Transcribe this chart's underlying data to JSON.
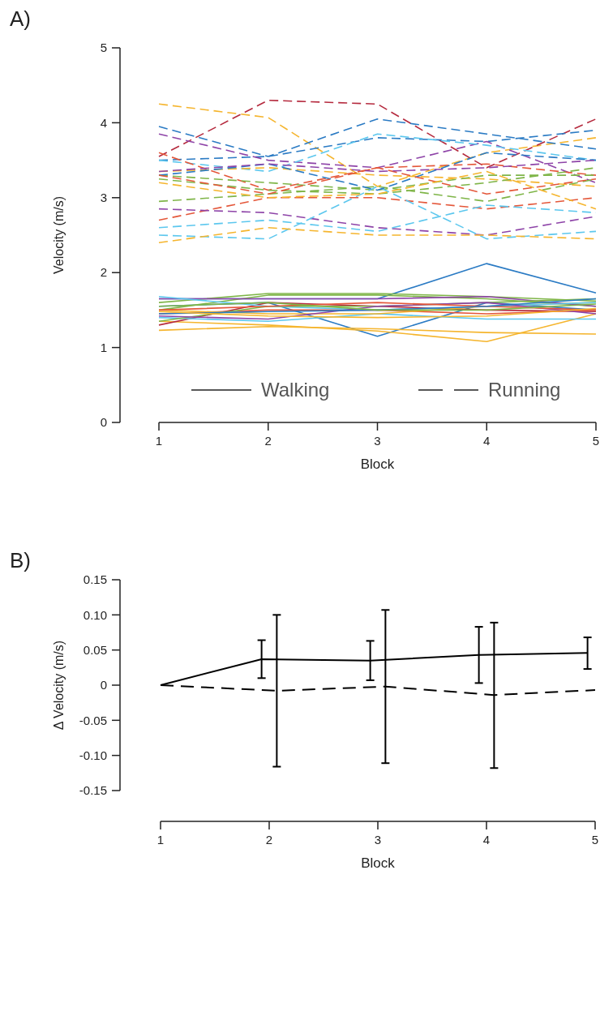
{
  "chart_data": [
    {
      "type": "line",
      "title": "A)",
      "xlabel": "Block",
      "ylabel": "Velocity (m/s)",
      "x": [
        1,
        2,
        3,
        4,
        5
      ],
      "xlim": [
        1,
        5
      ],
      "xticks": [
        1,
        2,
        3,
        4,
        5
      ],
      "ylim": [
        0,
        5
      ],
      "yticks": [
        0,
        1,
        2,
        3,
        4,
        5
      ],
      "grid": false,
      "marker": "none",
      "annotations": [
        "Walking",
        "Running"
      ],
      "series": [
        {
          "color": "#2b7bc4",
          "line_style": "solid",
          "values": [
            1.65,
            1.65,
            1.65,
            2.12,
            1.73
          ]
        },
        {
          "color": "#2b7bc4",
          "line_style": "solid",
          "values": [
            1.55,
            1.6,
            1.15,
            1.6,
            1.5
          ]
        },
        {
          "color": "#7fb548",
          "line_style": "solid",
          "values": [
            1.6,
            1.72,
            1.72,
            1.68,
            1.62
          ]
        },
        {
          "color": "#7fb548",
          "line_style": "solid",
          "values": [
            1.5,
            1.7,
            1.7,
            1.65,
            1.55
          ]
        },
        {
          "color": "#f5b52e",
          "line_style": "solid",
          "values": [
            1.23,
            1.28,
            1.25,
            1.2,
            1.18
          ]
        },
        {
          "color": "#f5b52e",
          "line_style": "solid",
          "values": [
            1.35,
            1.3,
            1.22,
            1.08,
            1.45
          ]
        },
        {
          "color": "#8e44a8",
          "line_style": "solid",
          "values": [
            1.65,
            1.65,
            1.65,
            1.68,
            1.55
          ]
        },
        {
          "color": "#b52a3e",
          "line_style": "solid",
          "values": [
            1.3,
            1.6,
            1.55,
            1.5,
            1.48
          ]
        },
        {
          "color": "#5cc7ee",
          "line_style": "solid",
          "values": [
            1.4,
            1.35,
            1.45,
            1.38,
            1.38
          ]
        },
        {
          "color": "#e4573a",
          "line_style": "solid",
          "values": [
            1.45,
            1.5,
            1.5,
            1.45,
            1.5
          ]
        },
        {
          "color": "#f5b52e",
          "line_style": "solid",
          "values": [
            1.5,
            1.45,
            1.45,
            1.55,
            1.6
          ]
        },
        {
          "color": "#5cc7ee",
          "line_style": "solid",
          "values": [
            1.68,
            1.55,
            1.5,
            1.55,
            1.6
          ]
        },
        {
          "color": "#7fb548",
          "line_style": "solid",
          "values": [
            1.35,
            1.55,
            1.55,
            1.6,
            1.65
          ]
        },
        {
          "color": "#8e44a8",
          "line_style": "solid",
          "values": [
            1.42,
            1.38,
            1.55,
            1.6,
            1.45
          ]
        },
        {
          "color": "#e4573a",
          "line_style": "solid",
          "values": [
            1.5,
            1.55,
            1.6,
            1.55,
            1.5
          ]
        },
        {
          "color": "#2b7bc4",
          "line_style": "solid",
          "values": [
            1.45,
            1.48,
            1.5,
            1.55,
            1.65
          ]
        },
        {
          "color": "#7fb548",
          "line_style": "solid",
          "values": [
            1.55,
            1.6,
            1.5,
            1.5,
            1.58
          ]
        },
        {
          "color": "#f5b52e",
          "line_style": "solid",
          "values": [
            1.48,
            1.42,
            1.4,
            1.42,
            1.52
          ]
        },
        {
          "color": "#f5b52e",
          "line_style": "dashed",
          "values": [
            4.25,
            4.07,
            3.15,
            3.6,
            3.8
          ]
        },
        {
          "color": "#b52a3e",
          "line_style": "dashed",
          "values": [
            3.55,
            4.3,
            4.25,
            3.4,
            4.05
          ]
        },
        {
          "color": "#2b7bc4",
          "line_style": "dashed",
          "values": [
            3.95,
            3.55,
            4.05,
            3.85,
            3.65
          ]
        },
        {
          "color": "#2b7bc4",
          "line_style": "dashed",
          "values": [
            3.5,
            3.55,
            3.8,
            3.75,
            3.9
          ]
        },
        {
          "color": "#8e44a8",
          "line_style": "dashed",
          "values": [
            3.85,
            3.5,
            3.4,
            3.75,
            3.2
          ]
        },
        {
          "color": "#5cc7ee",
          "line_style": "dashed",
          "values": [
            3.5,
            3.35,
            3.85,
            3.7,
            3.5
          ]
        },
        {
          "color": "#e4573a",
          "line_style": "dashed",
          "values": [
            3.6,
            3.1,
            3.4,
            3.45,
            3.3
          ]
        },
        {
          "color": "#f5b52e",
          "line_style": "dashed",
          "values": [
            3.35,
            3.4,
            3.3,
            3.25,
            3.15
          ]
        },
        {
          "color": "#7fb548",
          "line_style": "dashed",
          "values": [
            3.3,
            3.2,
            3.1,
            3.3,
            3.3
          ]
        },
        {
          "color": "#7fb548",
          "line_style": "dashed",
          "values": [
            3.25,
            3.1,
            3.05,
            3.2,
            3.4
          ]
        },
        {
          "color": "#e4573a",
          "line_style": "dashed",
          "values": [
            2.7,
            3.0,
            3.0,
            2.85,
            3.0
          ]
        },
        {
          "color": "#7fb548",
          "line_style": "dashed",
          "values": [
            2.95,
            3.05,
            3.15,
            2.95,
            3.25
          ]
        },
        {
          "color": "#8e44a8",
          "line_style": "dashed",
          "values": [
            2.85,
            2.8,
            2.6,
            2.5,
            2.75
          ]
        },
        {
          "color": "#5cc7ee",
          "line_style": "dashed",
          "values": [
            2.6,
            2.7,
            2.55,
            2.9,
            2.8
          ]
        },
        {
          "color": "#5cc7ee",
          "line_style": "dashed",
          "values": [
            2.5,
            2.45,
            3.15,
            2.45,
            2.55
          ]
        },
        {
          "color": "#f5b52e",
          "line_style": "dashed",
          "values": [
            2.4,
            2.6,
            2.5,
            2.5,
            2.45
          ]
        },
        {
          "color": "#2b7bc4",
          "line_style": "dashed",
          "values": [
            3.3,
            3.45,
            3.1,
            3.6,
            3.5
          ]
        },
        {
          "color": "#e4573a",
          "line_style": "dashed",
          "values": [
            3.3,
            3.05,
            3.4,
            3.05,
            3.25
          ]
        },
        {
          "color": "#8e44a8",
          "line_style": "dashed",
          "values": [
            3.35,
            3.45,
            3.35,
            3.4,
            3.5
          ]
        },
        {
          "color": "#f5b52e",
          "line_style": "dashed",
          "values": [
            3.2,
            3.0,
            3.05,
            3.35,
            2.85
          ]
        }
      ]
    },
    {
      "type": "line",
      "title": "B)",
      "xlabel": "Block",
      "ylabel": "Δ Velocity (m/s)",
      "xlim": [
        1,
        5
      ],
      "xticks": [
        1,
        2,
        3,
        4,
        5
      ],
      "ylim": [
        -0.15,
        0.15
      ],
      "yticks": [
        -0.15,
        {
          "value": -0.1,
          "label": "-0.10"
        },
        -0.05,
        0,
        0.05,
        {
          "value": 0.1,
          "label": "0.10"
        },
        0.15
      ],
      "grid": false,
      "marker": "none",
      "series": [
        {
          "color": "#000000",
          "line_style": "solid",
          "x": [
            1,
            1.93,
            2.93,
            3.93,
            4.93
          ],
          "values": [
            0,
            0.037,
            0.035,
            0.043,
            0.046
          ],
          "errors": [
            null,
            [
              0.01,
              0.064
            ],
            [
              0.007,
              0.063
            ],
            [
              0.003,
              0.083
            ],
            [
              0.023,
              0.068
            ]
          ]
        },
        {
          "color": "#000000",
          "line_style": "dashed",
          "x": [
            1,
            2.07,
            3.07,
            4.07,
            5
          ],
          "values": [
            0,
            -0.008,
            -0.002,
            -0.014,
            -0.007
          ],
          "errors": [
            null,
            [
              -0.116,
              0.1
            ],
            [
              -0.111,
              0.107
            ],
            [
              -0.118,
              0.089
            ],
            null
          ]
        }
      ]
    }
  ]
}
